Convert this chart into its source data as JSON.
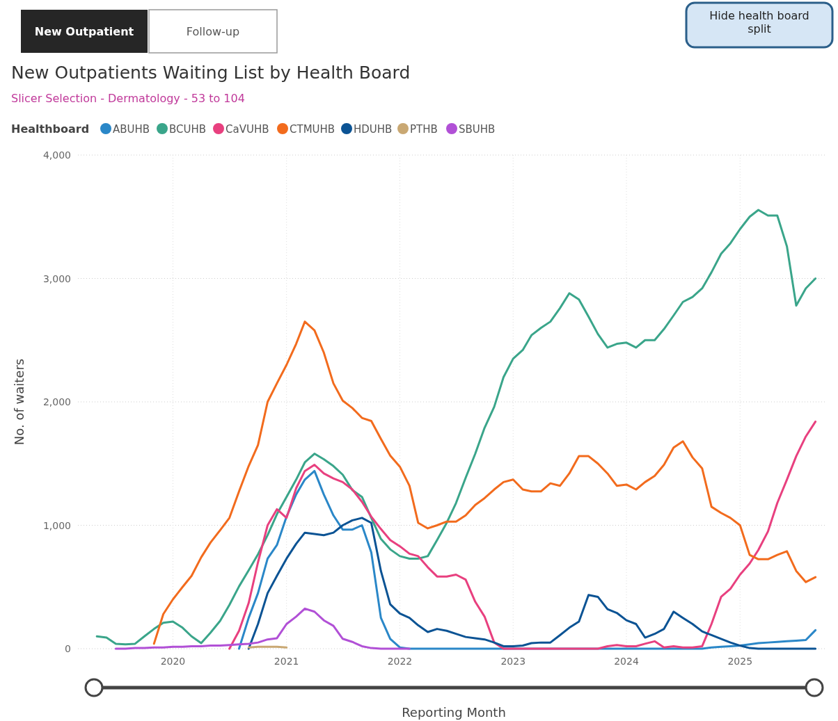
{
  "chart_data": {
    "type": "line",
    "title": "New Outpatients Waiting List by Health Board",
    "subtitle": "Slicer Selection - Dermatology - 53 to 104",
    "xlabel": "Reporting Month",
    "ylabel": "No. of waiters",
    "legend_title": "Healthboard",
    "legend": "top left",
    "grid": true,
    "marker": "none",
    "line_style": "solid",
    "annotations": [
      "New Outpatient",
      "Follow-up",
      "Hide health board split"
    ],
    "xlim": [
      "2019-03",
      "2025-10"
    ],
    "xticks": [
      "2020",
      "2021",
      "2022",
      "2023",
      "2024",
      "2025"
    ],
    "ylim": [
      0,
      4000
    ],
    "yticks": [
      0,
      {
        "value": 1000,
        "label": "1,000"
      },
      {
        "value": 2000,
        "label": "2,000"
      },
      {
        "value": 3000,
        "label": "3,000"
      },
      {
        "value": 4000,
        "label": "4,000"
      }
    ],
    "x": [
      "2019-05",
      "2019-06",
      "2019-07",
      "2019-08",
      "2019-09",
      "2019-10",
      "2019-11",
      "2019-12",
      "2020-01",
      "2020-02",
      "2020-03",
      "2020-04",
      "2020-05",
      "2020-06",
      "2020-07",
      "2020-08",
      "2020-09",
      "2020-10",
      "2020-11",
      "2020-12",
      "2021-01",
      "2021-02",
      "2021-03",
      "2021-04",
      "2021-05",
      "2021-06",
      "2021-07",
      "2021-08",
      "2021-09",
      "2021-10",
      "2021-11",
      "2021-12",
      "2022-01",
      "2022-02",
      "2022-03",
      "2022-04",
      "2022-05",
      "2022-06",
      "2022-07",
      "2022-08",
      "2022-09",
      "2022-10",
      "2022-11",
      "2022-12",
      "2023-01",
      "2023-02",
      "2023-03",
      "2023-04",
      "2023-05",
      "2023-06",
      "2023-07",
      "2023-08",
      "2023-09",
      "2023-10",
      "2023-11",
      "2023-12",
      "2024-01",
      "2024-02",
      "2024-03",
      "2024-04",
      "2024-05",
      "2024-06",
      "2024-07",
      "2024-08",
      "2024-09",
      "2024-10",
      "2024-11",
      "2024-12",
      "2025-01",
      "2025-02",
      "2025-03",
      "2025-04",
      "2025-05",
      "2025-06",
      "2025-07",
      "2025-08",
      "2025-09"
    ],
    "series": [
      {
        "name": "ABUHB",
        "color": "#2a87c8",
        "values": [
          null,
          null,
          null,
          null,
          null,
          null,
          null,
          null,
          null,
          null,
          null,
          null,
          null,
          null,
          null,
          0,
          250,
          450,
          730,
          840,
          1070,
          1250,
          1370,
          1440,
          1250,
          1080,
          965,
          965,
          1000,
          780,
          250,
          80,
          10,
          0,
          0,
          0,
          0,
          0,
          0,
          0,
          0,
          0,
          0,
          0,
          0,
          0,
          0,
          0,
          0,
          0,
          0,
          0,
          0,
          0,
          0,
          0,
          0,
          0,
          0,
          0,
          0,
          0,
          0,
          0,
          0,
          10,
          15,
          20,
          25,
          35,
          45,
          50,
          55,
          60,
          65,
          70,
          150
        ]
      },
      {
        "name": "BCUHB",
        "color": "#3aa58a",
        "values": [
          100,
          90,
          40,
          35,
          40,
          100,
          160,
          210,
          220,
          170,
          100,
          45,
          130,
          225,
          355,
          505,
          635,
          765,
          920,
          1090,
          1230,
          1370,
          1510,
          1580,
          1535,
          1480,
          1410,
          1285,
          1230,
          1060,
          890,
          805,
          750,
          730,
          730,
          750,
          880,
          1020,
          1180,
          1385,
          1580,
          1790,
          1960,
          2200,
          2350,
          2420,
          2540,
          2600,
          2650,
          2760,
          2880,
          2830,
          2690,
          2550,
          2440,
          2470,
          2480,
          2440,
          2500,
          2500,
          2590,
          2700,
          2810,
          2850,
          2920,
          3050,
          3200,
          3285,
          3400,
          3500,
          3555,
          3510,
          3510,
          3260,
          2780,
          2920,
          3000
        ]
      },
      {
        "name": "CaVUHB",
        "color": "#e8407f",
        "values": [
          null,
          null,
          null,
          null,
          null,
          null,
          null,
          null,
          null,
          null,
          null,
          null,
          null,
          null,
          0,
          145,
          370,
          700,
          1000,
          1130,
          1060,
          1300,
          1440,
          1490,
          1420,
          1380,
          1350,
          1290,
          1190,
          1070,
          970,
          880,
          830,
          770,
          750,
          660,
          585,
          585,
          600,
          560,
          380,
          260,
          50,
          0,
          0,
          0,
          0,
          0,
          0,
          0,
          0,
          0,
          0,
          0,
          20,
          30,
          20,
          20,
          40,
          60,
          10,
          20,
          10,
          10,
          20,
          200,
          420,
          485,
          600,
          690,
          800,
          950,
          1180,
          1370,
          1560,
          1720,
          1840
        ]
      },
      {
        "name": "CTMUHB",
        "color": "#f26b1d",
        "values": [
          null,
          null,
          null,
          null,
          null,
          null,
          40,
          280,
          400,
          500,
          590,
          740,
          860,
          960,
          1060,
          1275,
          1480,
          1650,
          2000,
          2150,
          2300,
          2470,
          2650,
          2580,
          2400,
          2150,
          2010,
          1950,
          1870,
          1845,
          1700,
          1565,
          1475,
          1320,
          1020,
          975,
          1000,
          1030,
          1030,
          1080,
          1165,
          1220,
          1290,
          1350,
          1370,
          1290,
          1275,
          1275,
          1340,
          1320,
          1420,
          1560,
          1560,
          1500,
          1420,
          1320,
          1330,
          1290,
          1350,
          1400,
          1490,
          1630,
          1680,
          1550,
          1460,
          1150,
          1100,
          1060,
          1000,
          760,
          725,
          725,
          760,
          790,
          630,
          540,
          580
        ]
      },
      {
        "name": "HDUHB",
        "color": "#0b5394",
        "values": [
          null,
          null,
          null,
          null,
          null,
          null,
          null,
          null,
          null,
          null,
          null,
          null,
          null,
          null,
          null,
          null,
          0,
          200,
          450,
          590,
          730,
          850,
          940,
          930,
          920,
          940,
          1000,
          1040,
          1060,
          1020,
          630,
          360,
          285,
          250,
          190,
          135,
          160,
          145,
          120,
          95,
          85,
          75,
          50,
          20,
          20,
          25,
          45,
          50,
          50,
          110,
          170,
          220,
          435,
          420,
          320,
          290,
          230,
          200,
          90,
          120,
          160,
          300,
          250,
          200,
          140,
          110,
          80,
          50,
          25,
          5,
          0,
          0,
          0,
          0,
          0,
          0,
          0
        ]
      },
      {
        "name": "PTHB",
        "color": "#c9a873",
        "values": [
          null,
          null,
          null,
          null,
          null,
          null,
          null,
          null,
          null,
          null,
          null,
          null,
          null,
          null,
          null,
          null,
          10,
          15,
          15,
          15,
          10,
          null,
          null,
          null,
          null,
          null,
          null,
          null,
          null,
          null,
          null,
          null,
          null,
          null,
          null,
          null,
          null,
          null,
          null,
          null,
          null,
          null,
          null,
          null,
          null,
          null,
          null,
          null,
          null,
          null,
          null,
          null,
          null,
          null,
          null,
          null,
          null,
          null,
          null,
          null,
          null,
          null,
          null,
          null,
          null,
          null,
          null,
          null,
          null,
          null,
          null,
          null,
          null,
          null,
          null,
          null,
          null
        ]
      },
      {
        "name": "SBUHB",
        "color": "#b150d6",
        "values": [
          null,
          null,
          0,
          0,
          5,
          5,
          10,
          10,
          15,
          15,
          20,
          20,
          25,
          25,
          30,
          35,
          40,
          50,
          75,
          85,
          200,
          260,
          325,
          300,
          230,
          185,
          80,
          55,
          20,
          5,
          0,
          0,
          0,
          0,
          null,
          null,
          null,
          null,
          null,
          null,
          null,
          null,
          null,
          null,
          null,
          null,
          null,
          null,
          null,
          null,
          null,
          null,
          null,
          null,
          null,
          null,
          null,
          null,
          null,
          null,
          null,
          null,
          null,
          null,
          null,
          null,
          null,
          null,
          null,
          null,
          null,
          null,
          null,
          null,
          null,
          null,
          null
        ]
      }
    ]
  }
}
